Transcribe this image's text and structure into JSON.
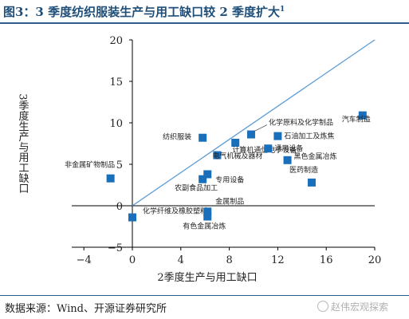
{
  "header": {
    "title": "图3：3 季度纺织服装生产与用工缺口较 2 季度扩大",
    "title_sup": "1"
  },
  "footer": {
    "source": "数据来源：Wind、开源证券研究所",
    "watermark": "赵伟宏观探索"
  },
  "chart_data": {
    "type": "scatter",
    "xlabel": "2季度生产与用工缺口",
    "ylabel": "3季度生产与用工缺口",
    "xlim": [
      -5,
      20
    ],
    "ylim": [
      -5,
      20
    ],
    "x_ticks": [
      -4,
      0,
      4,
      8,
      12,
      16,
      20
    ],
    "y_ticks": [
      -5,
      0,
      5,
      10,
      15,
      20
    ],
    "diagonal_line": true,
    "marker_color": "#1a6fba",
    "line_color": "#5b9bd5",
    "points": [
      {
        "label": "非金属矿物制品",
        "x": -1.8,
        "y": 3.3
      },
      {
        "label": "化学纤维及橡胶塑料",
        "x": 0.0,
        "y": -1.4
      },
      {
        "label": "纺织服装",
        "x": 5.8,
        "y": 8.2
      },
      {
        "label": "农副食品加工",
        "x": 5.8,
        "y": 3.2
      },
      {
        "label": "专用设备",
        "x": 6.2,
        "y": 3.8
      },
      {
        "label": "金属制品",
        "x": 6.2,
        "y": -0.7
      },
      {
        "label": "有色金属冶炼",
        "x": 6.2,
        "y": -1.3
      },
      {
        "label": "电气机械及器材",
        "x": 7.0,
        "y": 6.1
      },
      {
        "label": "计算机通信电子设备",
        "x": 8.5,
        "y": 7.6
      },
      {
        "label": "化学原料及化学制品",
        "x": 9.8,
        "y": 8.6
      },
      {
        "label": "通用设备",
        "x": 11.2,
        "y": 6.9
      },
      {
        "label": "石油加工及炼焦",
        "x": 12.0,
        "y": 8.4
      },
      {
        "label": "黑色金属冶炼",
        "x": 12.8,
        "y": 5.5
      },
      {
        "label": "医药制造",
        "x": 14.8,
        "y": 2.8
      },
      {
        "label": "汽车制造",
        "x": 19.0,
        "y": 10.9
      }
    ]
  }
}
